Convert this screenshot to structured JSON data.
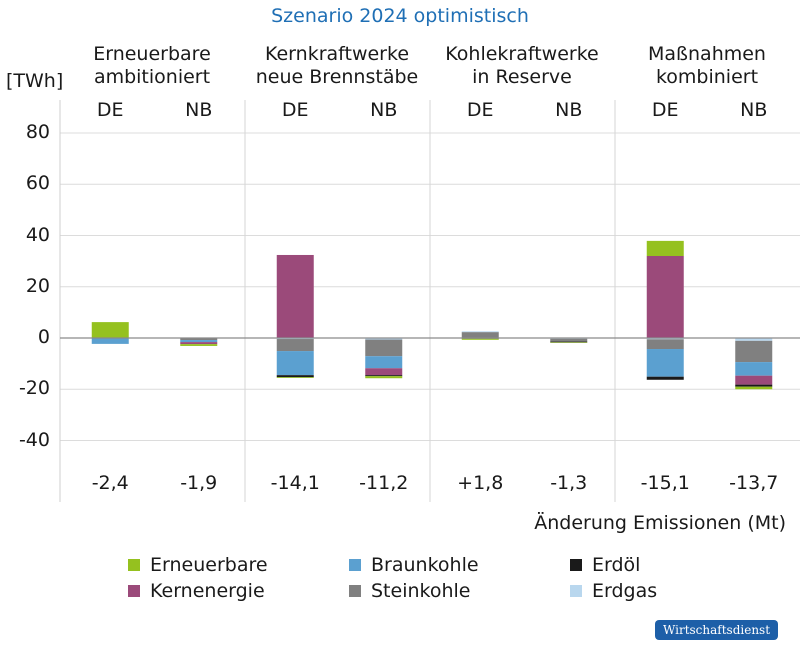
{
  "chart_data": {
    "type": "bar",
    "stacked": true,
    "title": "Szenario 2024 optimistisch",
    "ylabel": "[TWh]",
    "ylim": [
      -40,
      80
    ],
    "yticks": [
      80,
      60,
      40,
      20,
      0,
      -20,
      -40
    ],
    "grid": true,
    "groups": [
      {
        "label": "Erneuerbare ambitioniert",
        "lines": [
          "Erneuerbare",
          "ambitioniert"
        ]
      },
      {
        "label": "Kernkraftwerke neue Brennstäbe",
        "lines": [
          "Kernkraftwerke",
          "neue Brennstäbe"
        ]
      },
      {
        "label": "Kohlekraftwerke in Reserve",
        "lines": [
          "Kohlekraftwerke",
          "in Reserve"
        ]
      },
      {
        "label": "Maßnahmen kombiniert",
        "lines": [
          "Maßnahmen",
          "kombiniert"
        ]
      }
    ],
    "categories": [
      "DE",
      "NB",
      "DE",
      "NB",
      "DE",
      "NB",
      "DE",
      "NB"
    ],
    "emissions_label": "Änderung Emissionen (Mt)",
    "emissions": [
      "-2,4",
      "-1,9",
      "-14,1",
      "-11,2",
      "+1,8",
      "-1,3",
      "-15,1",
      "-13,7"
    ],
    "legend_placement": "bottom",
    "series": [
      {
        "name": "Erneuerbare",
        "color": "#95c11f",
        "values": [
          6.2,
          -0.7,
          -0.3,
          -0.8,
          -0.4,
          -0.2,
          5.9,
          -1.0
        ]
      },
      {
        "name": "Kernenergie",
        "color": "#9b4a7a",
        "values": [
          0,
          -0.8,
          32.4,
          -2.7,
          0,
          0,
          32.0,
          -3.5
        ]
      },
      {
        "name": "Braunkohle",
        "color": "#5ba0d0",
        "values": [
          -2.3,
          -0.8,
          -9.4,
          -4.7,
          0,
          0,
          -10.8,
          -5.3
        ]
      },
      {
        "name": "Steinkohle",
        "color": "#808080",
        "values": [
          0,
          -0.8,
          -4.7,
          -6.5,
          2.3,
          -1.1,
          -3.8,
          -8.3
        ]
      },
      {
        "name": "Erdöl",
        "color": "#1a1a1a",
        "values": [
          0,
          0,
          -0.8,
          -0.4,
          -0.3,
          -0.3,
          -1.2,
          -0.8
        ]
      },
      {
        "name": "Erdgas",
        "color": "#b9d7ee",
        "values": [
          0,
          0,
          -0.4,
          -0.6,
          0.3,
          -0.3,
          -0.5,
          -1.1
        ]
      }
    ]
  },
  "badge": "Wirtschaftsdienst"
}
